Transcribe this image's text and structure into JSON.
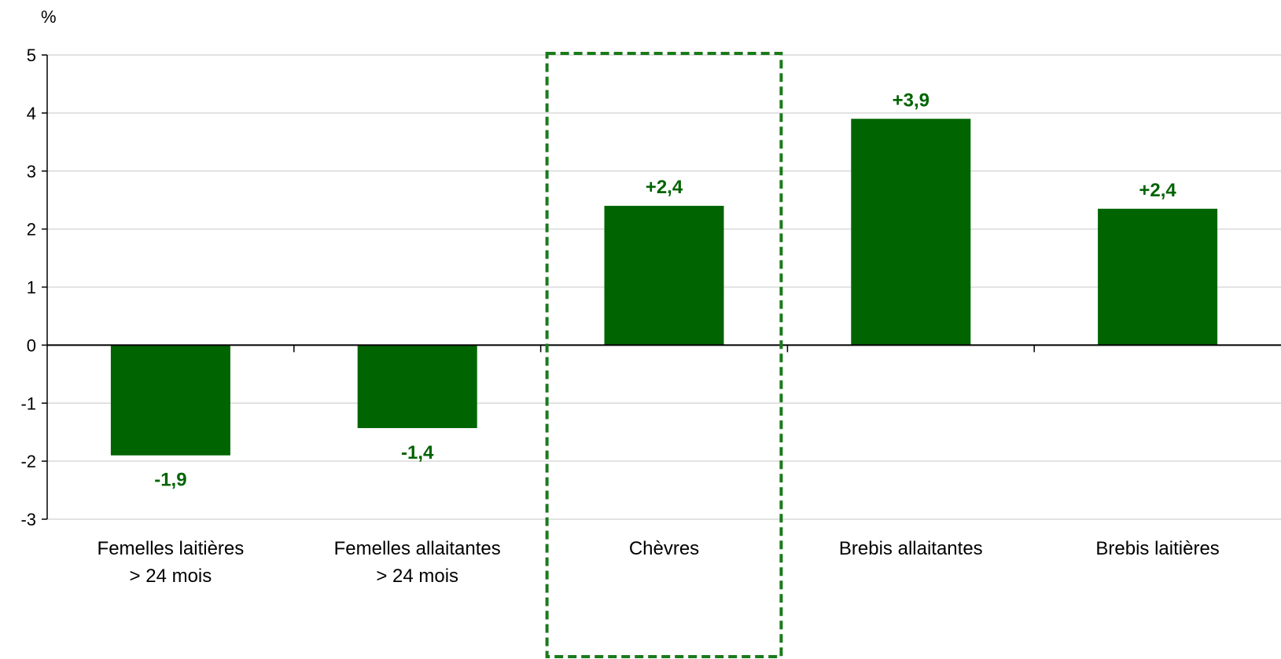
{
  "chart_data": {
    "type": "bar",
    "title": "",
    "xlabel": "",
    "ylabel": "",
    "y_unit_label": "%",
    "categories": [
      [
        "Femelles laitières",
        "> 24 mois"
      ],
      [
        "Femelles allaitantes",
        "> 24 mois"
      ],
      [
        "Chèvres"
      ],
      [
        "Brebis allaitantes"
      ],
      [
        "Brebis laitières"
      ]
    ],
    "values": [
      -1.9,
      -1.43,
      2.4,
      3.9,
      2.35
    ],
    "data_labels": [
      "-1,9",
      "-1,4",
      "+2,4",
      "+3,9",
      "+2,4"
    ],
    "ylim": [
      -3,
      5
    ],
    "yticks": [
      5,
      4,
      3,
      2,
      1,
      0,
      -1,
      -2,
      -3
    ],
    "grid": true,
    "legend": "none",
    "highlighted_category": "Chèvres",
    "colors": {
      "bar": "#006400",
      "label": "#006400",
      "highlight_box": "#1a7a1a",
      "grid": "#d9d9d9",
      "axis": "#000000"
    }
  }
}
